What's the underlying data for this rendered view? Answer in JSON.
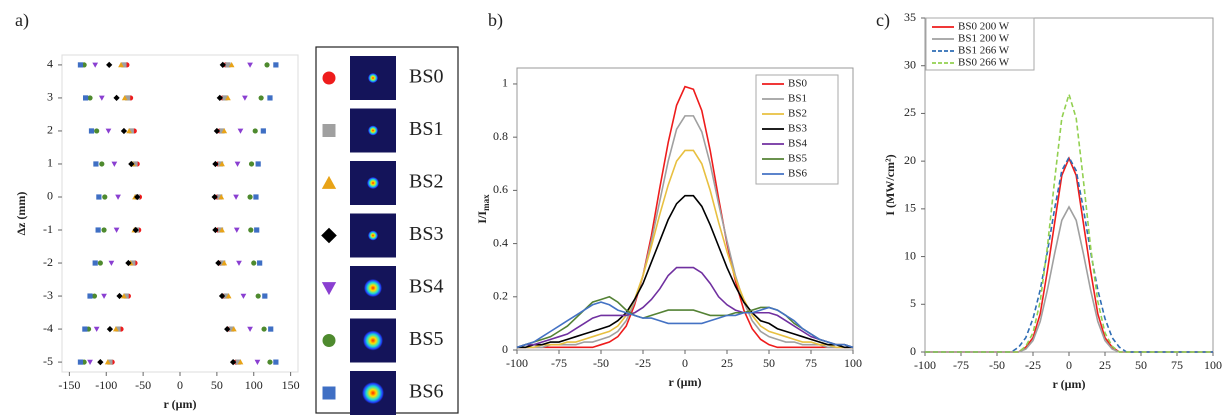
{
  "chart_data": [
    {
      "type": "scatter",
      "panel_label": "a)",
      "xlabel": "r (μm)",
      "ylabel": "Δz (mm)",
      "xlim": [
        -160,
        160
      ],
      "ylim": [
        -5.3,
        4.3
      ],
      "xticks": [
        -150,
        -100,
        -50,
        0,
        50,
        100,
        150
      ],
      "yticks": [
        -5,
        -4,
        -3,
        -2,
        -1,
        0,
        1,
        2,
        3,
        4
      ],
      "y": [
        4,
        3,
        2,
        1,
        0,
        -1,
        -2,
        -3,
        -4,
        -5
      ],
      "series": [
        {
          "name": "BS0",
          "color": "#ee1c1c",
          "marker": "circle",
          "x_left": [
            -72,
            -67,
            -62,
            -58,
            -55,
            -56,
            -61,
            -70,
            -80,
            -92
          ],
          "x_right": [
            62,
            58,
            54,
            52,
            51,
            52,
            55,
            60,
            67,
            76
          ]
        },
        {
          "name": "BS1",
          "color": "#a0a0a0",
          "marker": "square",
          "x_left": [
            -76,
            -71,
            -66,
            -61,
            -58,
            -59,
            -64,
            -73,
            -84,
            -95
          ],
          "x_right": [
            65,
            61,
            57,
            55,
            54,
            55,
            58,
            63,
            70,
            79
          ]
        },
        {
          "name": "BS2",
          "color": "#e8a317",
          "marker": "triangle",
          "x_left": [
            -80,
            -75,
            -69,
            -64,
            -61,
            -62,
            -67,
            -76,
            -87,
            -98
          ],
          "x_right": [
            70,
            65,
            60,
            57,
            56,
            57,
            60,
            66,
            73,
            82
          ]
        },
        {
          "name": "BS3",
          "color": "#000000",
          "marker": "diamond",
          "x_left": [
            -96,
            -86,
            -76,
            -66,
            -58,
            -60,
            -70,
            -82,
            -95,
            -108
          ],
          "x_right": [
            58,
            54,
            50,
            48,
            47,
            48,
            52,
            57,
            64,
            72
          ]
        },
        {
          "name": "BS4",
          "color": "#8a3fd1",
          "marker": "triangle-down",
          "x_left": [
            -115,
            -106,
            -97,
            -89,
            -84,
            -86,
            -93,
            -103,
            -113,
            -122
          ],
          "x_right": [
            95,
            88,
            82,
            78,
            76,
            77,
            80,
            86,
            95,
            105
          ]
        },
        {
          "name": "BS5",
          "color": "#4e8a2e",
          "marker": "circle",
          "x_left": [
            -130,
            -122,
            -113,
            -106,
            -102,
            -103,
            -108,
            -116,
            -124,
            -130
          ],
          "x_right": [
            118,
            110,
            102,
            97,
            95,
            96,
            100,
            106,
            114,
            122
          ]
        },
        {
          "name": "BS6",
          "color": "#3f6fc4",
          "marker": "square",
          "x_left": [
            -135,
            -128,
            -120,
            -114,
            -110,
            -111,
            -115,
            -122,
            -129,
            -135
          ],
          "x_right": [
            130,
            122,
            113,
            106,
            103,
            104,
            108,
            115,
            123,
            130
          ]
        }
      ]
    },
    {
      "type": "line",
      "panel_label": "b)",
      "xlabel": "r (μm)",
      "ylabel": "I/I",
      "ylabel_sub": "max",
      "xlim": [
        -100,
        100
      ],
      "ylim": [
        0,
        1.06
      ],
      "xticks": [
        -100,
        -75,
        -50,
        -25,
        0,
        25,
        50,
        75,
        100
      ],
      "yticks": [
        0,
        0.2,
        0.4,
        0.6,
        0.8,
        1
      ],
      "x": [
        -100,
        -95,
        -90,
        -85,
        -80,
        -75,
        -70,
        -65,
        -60,
        -55,
        -50,
        -45,
        -40,
        -35,
        -30,
        -25,
        -20,
        -15,
        -10,
        -5,
        0,
        5,
        10,
        15,
        20,
        25,
        30,
        35,
        40,
        45,
        50,
        55,
        60,
        65,
        70,
        75,
        80,
        85,
        90,
        95,
        100
      ],
      "series": [
        {
          "name": "BS0",
          "color": "#ee1c1c",
          "values": [
            0.01,
            0.01,
            0.01,
            0.01,
            0.01,
            0.01,
            0.01,
            0.01,
            0.01,
            0.01,
            0.02,
            0.03,
            0.05,
            0.09,
            0.17,
            0.28,
            0.43,
            0.61,
            0.78,
            0.92,
            0.99,
            0.98,
            0.9,
            0.75,
            0.57,
            0.4,
            0.26,
            0.15,
            0.08,
            0.04,
            0.02,
            0.01,
            0.01,
            0.01,
            0.01,
            0.01,
            0.01,
            0.01,
            0.01,
            0.01,
            0.01
          ]
        },
        {
          "name": "BS1",
          "color": "#a0a0a0",
          "values": [
            0.01,
            0.01,
            0.01,
            0.01,
            0.02,
            0.02,
            0.02,
            0.02,
            0.03,
            0.03,
            0.04,
            0.05,
            0.07,
            0.11,
            0.18,
            0.28,
            0.41,
            0.56,
            0.71,
            0.83,
            0.88,
            0.88,
            0.82,
            0.7,
            0.55,
            0.41,
            0.28,
            0.18,
            0.11,
            0.07,
            0.05,
            0.04,
            0.03,
            0.03,
            0.02,
            0.02,
            0.02,
            0.01,
            0.01,
            0.01,
            0.01
          ]
        },
        {
          "name": "BS2",
          "color": "#e8c040",
          "values": [
            0.01,
            0.01,
            0.01,
            0.02,
            0.02,
            0.02,
            0.03,
            0.03,
            0.04,
            0.05,
            0.06,
            0.07,
            0.09,
            0.13,
            0.19,
            0.28,
            0.39,
            0.51,
            0.62,
            0.71,
            0.75,
            0.75,
            0.7,
            0.6,
            0.48,
            0.37,
            0.27,
            0.19,
            0.13,
            0.09,
            0.07,
            0.06,
            0.05,
            0.04,
            0.03,
            0.03,
            0.02,
            0.02,
            0.01,
            0.01,
            0.01
          ]
        },
        {
          "name": "BS3",
          "color": "#000000",
          "values": [
            0.01,
            0.01,
            0.02,
            0.02,
            0.03,
            0.03,
            0.04,
            0.05,
            0.06,
            0.07,
            0.08,
            0.09,
            0.11,
            0.14,
            0.19,
            0.25,
            0.33,
            0.41,
            0.49,
            0.55,
            0.58,
            0.58,
            0.54,
            0.47,
            0.39,
            0.31,
            0.24,
            0.18,
            0.14,
            0.11,
            0.1,
            0.08,
            0.07,
            0.06,
            0.05,
            0.04,
            0.03,
            0.02,
            0.02,
            0.01,
            0.01
          ]
        },
        {
          "name": "BS4",
          "color": "#7030a0",
          "values": [
            0.01,
            0.02,
            0.02,
            0.03,
            0.04,
            0.05,
            0.06,
            0.08,
            0.1,
            0.12,
            0.13,
            0.13,
            0.13,
            0.13,
            0.14,
            0.16,
            0.19,
            0.23,
            0.28,
            0.31,
            0.31,
            0.31,
            0.29,
            0.25,
            0.2,
            0.17,
            0.15,
            0.14,
            0.14,
            0.14,
            0.14,
            0.13,
            0.11,
            0.09,
            0.07,
            0.05,
            0.04,
            0.03,
            0.02,
            0.02,
            0.01
          ]
        },
        {
          "name": "BS5",
          "color": "#548235",
          "values": [
            0.01,
            0.02,
            0.03,
            0.04,
            0.05,
            0.07,
            0.09,
            0.12,
            0.15,
            0.18,
            0.19,
            0.2,
            0.18,
            0.15,
            0.13,
            0.12,
            0.13,
            0.14,
            0.15,
            0.15,
            0.15,
            0.15,
            0.14,
            0.13,
            0.13,
            0.13,
            0.14,
            0.14,
            0.15,
            0.16,
            0.16,
            0.15,
            0.13,
            0.1,
            0.08,
            0.06,
            0.04,
            0.03,
            0.02,
            0.02,
            0.01
          ]
        },
        {
          "name": "BS6",
          "color": "#4472c4",
          "values": [
            0.01,
            0.02,
            0.03,
            0.05,
            0.07,
            0.09,
            0.11,
            0.13,
            0.15,
            0.17,
            0.18,
            0.17,
            0.15,
            0.14,
            0.13,
            0.12,
            0.12,
            0.11,
            0.1,
            0.1,
            0.1,
            0.1,
            0.1,
            0.11,
            0.12,
            0.13,
            0.13,
            0.14,
            0.14,
            0.15,
            0.16,
            0.15,
            0.13,
            0.11,
            0.08,
            0.06,
            0.04,
            0.03,
            0.02,
            0.02,
            0.01
          ]
        }
      ]
    },
    {
      "type": "line",
      "panel_label": "c)",
      "xlabel": "r (μm)",
      "ylabel": "I (MW/cm²)",
      "xlim": [
        -100,
        100
      ],
      "ylim": [
        0,
        35
      ],
      "xticks": [
        -100,
        -75,
        -50,
        -25,
        0,
        25,
        50,
        75,
        100
      ],
      "yticks": [
        0,
        5,
        10,
        15,
        20,
        25,
        30,
        35
      ],
      "x": [
        -100,
        -95,
        -90,
        -85,
        -80,
        -75,
        -70,
        -65,
        -60,
        -55,
        -50,
        -45,
        -40,
        -35,
        -30,
        -25,
        -20,
        -15,
        -10,
        -5,
        0,
        5,
        10,
        15,
        20,
        25,
        30,
        35,
        40,
        45,
        50,
        55,
        60,
        65,
        70,
        75,
        80,
        85,
        90,
        95,
        100
      ],
      "series": [
        {
          "name": "BS0 200 W",
          "color": "#ee1c1c",
          "dashed": false,
          "values": [
            0,
            0,
            0,
            0,
            0,
            0,
            0,
            0,
            0,
            0,
            0,
            0,
            0,
            0,
            0.5,
            1.5,
            4,
            8.5,
            13.5,
            18.5,
            20.3,
            18.5,
            13.5,
            8.5,
            4,
            1.5,
            0.5,
            0,
            0,
            0,
            0,
            0,
            0,
            0,
            0,
            0,
            0,
            0,
            0,
            0,
            0
          ]
        },
        {
          "name": "BS1 200 W",
          "color": "#a0a0a0",
          "dashed": false,
          "values": [
            0,
            0,
            0,
            0,
            0,
            0,
            0,
            0,
            0,
            0,
            0,
            0,
            0,
            0,
            0.3,
            1.2,
            3.2,
            6.5,
            10.3,
            13.8,
            15.2,
            13.8,
            10.3,
            6.5,
            3.2,
            1.2,
            0.3,
            0,
            0,
            0,
            0,
            0,
            0,
            0,
            0,
            0,
            0,
            0,
            0,
            0,
            0
          ]
        },
        {
          "name": "BS1 266 W",
          "color": "#2f6db5",
          "dashed": true,
          "values": [
            0,
            0,
            0,
            0,
            0,
            0,
            0,
            0,
            0,
            0,
            0,
            0,
            0,
            0.5,
            1.5,
            3.5,
            6.5,
            10.5,
            15,
            19,
            20.4,
            19,
            15,
            10.5,
            6.5,
            3.5,
            1.5,
            0.5,
            0,
            0,
            0,
            0,
            0,
            0,
            0,
            0,
            0,
            0,
            0,
            0,
            0
          ]
        },
        {
          "name": "BS0 266 W",
          "color": "#92d050",
          "dashed": true,
          "values": [
            0,
            0,
            0,
            0,
            0,
            0,
            0,
            0,
            0,
            0,
            0,
            0,
            0,
            0,
            0.6,
            2,
            5.3,
            11,
            18,
            24.5,
            27,
            24.5,
            18,
            11,
            5.3,
            2,
            0.6,
            0,
            0,
            0,
            0,
            0,
            0,
            0,
            0,
            0,
            0,
            0,
            0,
            0,
            0
          ]
        }
      ]
    }
  ]
}
